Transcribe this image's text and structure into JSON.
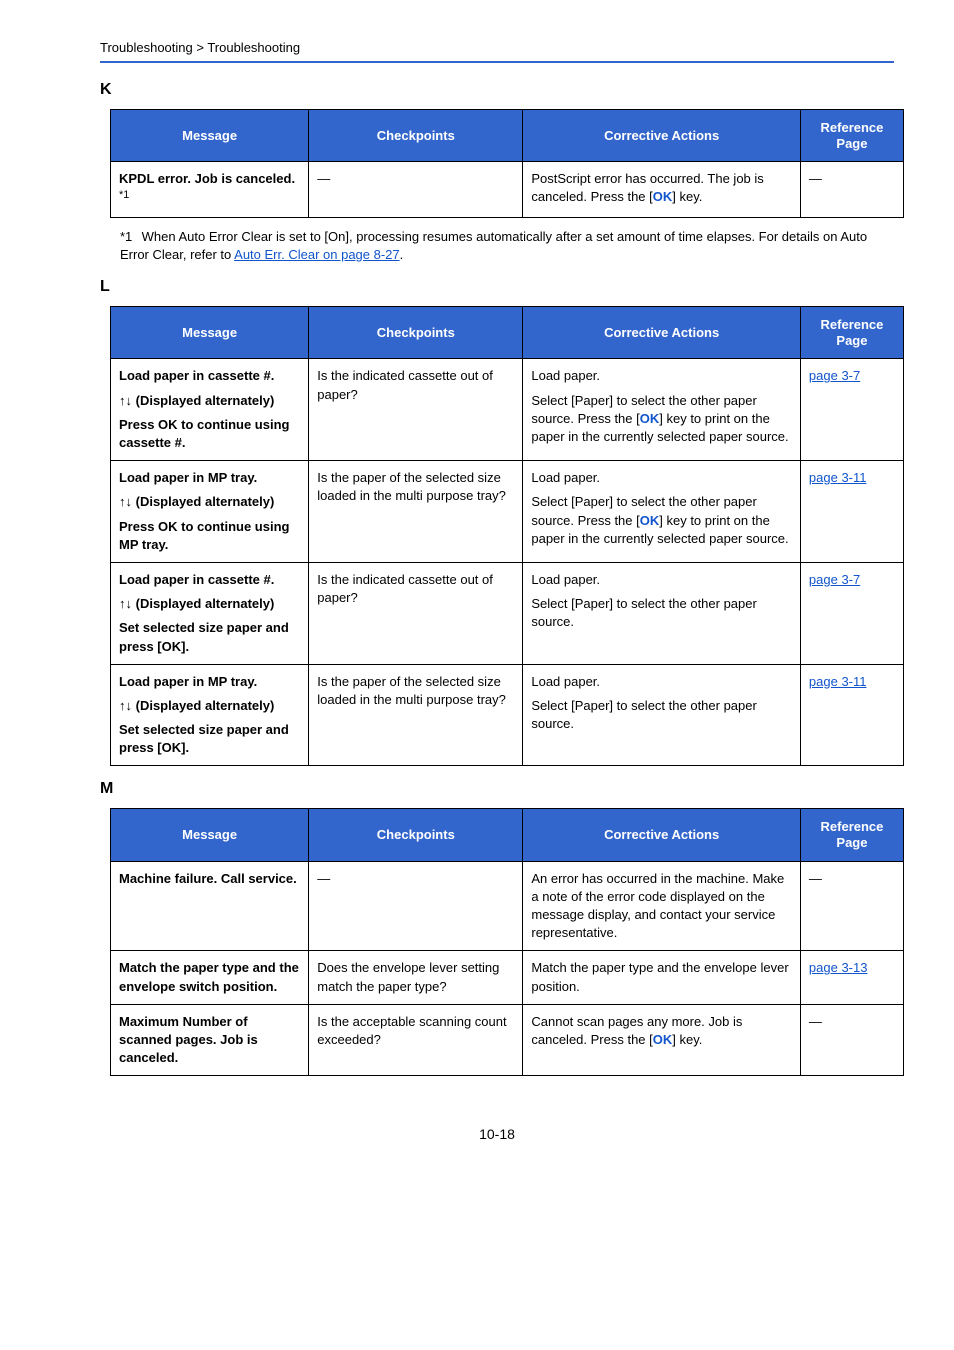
{
  "breadcrumb": "Troubleshooting > Troubleshooting",
  "page_number": "10-18",
  "columns": {
    "message": "Message",
    "checkpoints": "Checkpoints",
    "corrective": "Corrective Actions",
    "reference": "Reference Page"
  },
  "sections": [
    {
      "letter": "K",
      "rows": [
        {
          "message_parts": [
            {
              "t": "KPDL error. Job is canceled. ",
              "b": true
            },
            {
              "t": "*1",
              "sup": true
            }
          ],
          "checkpoints_parts": [
            {
              "t": "―"
            }
          ],
          "corrective_parts": [
            {
              "t": "PostScript error has occurred. The job is canceled. Press the ["
            },
            {
              "t": "OK",
              "cls": "ok"
            },
            {
              "t": "] key."
            }
          ],
          "reference_parts": [
            {
              "t": "―"
            }
          ]
        }
      ],
      "footnote": {
        "num": "*1",
        "text_parts": [
          {
            "t": "When Auto Error Clear is set to [On], processing resumes automatically after a set amount of time elapses. For details on Auto Error Clear, refer to "
          },
          {
            "t": "Auto Err. Clear on page 8-27",
            "cls": "link"
          },
          {
            "t": "."
          }
        ]
      }
    },
    {
      "letter": "L",
      "rows": [
        {
          "message_parts": [
            {
              "t": "Load paper in cassette #.",
              "b": true,
              "br": true
            },
            {
              "t": "↑↓ (Displayed alternately)",
              "b": true,
              "br": true
            },
            {
              "t": "Press OK to continue using cassette #.",
              "b": true
            }
          ],
          "checkpoints_parts": [
            {
              "t": "Is the indicated cassette out of paper?"
            }
          ],
          "corrective_parts": [
            {
              "t": "Load paper.",
              "br": true
            },
            {
              "t": "Select [Paper] to select the other paper source. Press the ["
            },
            {
              "t": "OK",
              "cls": "ok"
            },
            {
              "t": "] key to print on the paper in the currently selected paper source."
            }
          ],
          "reference_parts": [
            {
              "t": "page 3-7",
              "cls": "link"
            }
          ]
        },
        {
          "message_parts": [
            {
              "t": "Load paper in MP tray.",
              "b": true,
              "br": true
            },
            {
              "t": "↑↓ (Displayed alternately)",
              "b": true,
              "br": true
            },
            {
              "t": "Press OK to continue using MP tray.",
              "b": true
            }
          ],
          "checkpoints_parts": [
            {
              "t": "Is the paper of the selected size loaded in the multi purpose tray?"
            }
          ],
          "corrective_parts": [
            {
              "t": "Load paper.",
              "br": true
            },
            {
              "t": "Select [Paper] to select the other paper source. Press the ["
            },
            {
              "t": "OK",
              "cls": "ok"
            },
            {
              "t": "] key to print on the paper in the currently selected paper source."
            }
          ],
          "reference_parts": [
            {
              "t": "page 3-11",
              "cls": "link"
            }
          ]
        },
        {
          "message_parts": [
            {
              "t": "Load paper in cassette #.",
              "b": true,
              "br": true
            },
            {
              "t": "↑↓ (Displayed alternately)",
              "b": true,
              "br": true
            },
            {
              "t": "Set selected size paper and press [OK].",
              "b": true
            }
          ],
          "checkpoints_parts": [
            {
              "t": "Is the indicated cassette out of paper?"
            }
          ],
          "corrective_parts": [
            {
              "t": "Load paper.",
              "br": true
            },
            {
              "t": "Select [Paper] to select the other paper source."
            }
          ],
          "reference_parts": [
            {
              "t": "page 3-7",
              "cls": "link"
            }
          ]
        },
        {
          "message_parts": [
            {
              "t": "Load paper in MP tray.",
              "b": true,
              "br": true
            },
            {
              "t": "↑↓ (Displayed alternately)",
              "b": true,
              "br": true
            },
            {
              "t": "Set selected size paper and press [OK].",
              "b": true
            }
          ],
          "checkpoints_parts": [
            {
              "t": "Is the paper of the selected size loaded in the multi purpose tray?"
            }
          ],
          "corrective_parts": [
            {
              "t": "Load paper.",
              "br": true
            },
            {
              "t": "Select [Paper] to select the other paper source."
            }
          ],
          "reference_parts": [
            {
              "t": "page 3-11",
              "cls": "link"
            }
          ]
        }
      ]
    },
    {
      "letter": "M",
      "rows": [
        {
          "message_parts": [
            {
              "t": "Machine failure. Call service.",
              "b": true
            }
          ],
          "checkpoints_parts": [
            {
              "t": "―"
            }
          ],
          "corrective_parts": [
            {
              "t": "An error has occurred in the machine. Make a note of the error code displayed on the message display, and contact your service representative."
            }
          ],
          "reference_parts": [
            {
              "t": "―"
            }
          ]
        },
        {
          "message_parts": [
            {
              "t": "Match the paper type and the envelope switch position.",
              "b": true
            }
          ],
          "checkpoints_parts": [
            {
              "t": "Does the envelope lever setting match the paper type?"
            }
          ],
          "corrective_parts": [
            {
              "t": "Match the paper type and the envelope lever position."
            }
          ],
          "reference_parts": [
            {
              "t": "page 3-13",
              "cls": "link"
            }
          ]
        },
        {
          "message_parts": [
            {
              "t": "Maximum Number of scanned pages. Job is canceled.",
              "b": true
            }
          ],
          "checkpoints_parts": [
            {
              "t": "Is the acceptable scanning count exceeded?"
            }
          ],
          "corrective_parts": [
            {
              "t": "Cannot scan pages any more. Job is canceled. Press the ["
            },
            {
              "t": "OK",
              "cls": "ok"
            },
            {
              "t": "] key."
            }
          ],
          "reference_parts": [
            {
              "t": "―"
            }
          ]
        }
      ]
    }
  ]
}
